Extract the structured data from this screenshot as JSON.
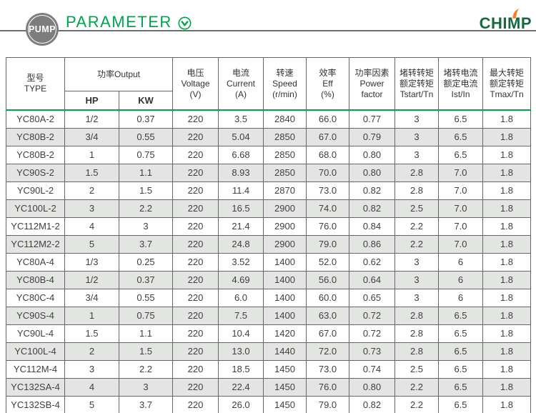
{
  "theme": {
    "accent_green": "#00a44c",
    "brand_green": "#17693d",
    "brand_orange": "#f58220",
    "badge_gray": "#7d7d7d",
    "rule_gray": "#6e6e6e",
    "row_shade": "#e3e5e2",
    "border_gray": "#666666",
    "text_dark": "#3c3c3c"
  },
  "header": {
    "badge_label": "PUMP",
    "title": "PARAMETER",
    "brand": "CHIMP"
  },
  "table": {
    "headers": {
      "type": {
        "line1": "型号",
        "line2": "TYPE"
      },
      "output": {
        "title": "功率Output",
        "sub": [
          "HP",
          "KW"
        ]
      },
      "voltage": {
        "line1": "电压",
        "line2": "Voltage",
        "line3": "(V)"
      },
      "current": {
        "line1": "电流",
        "line2": "Current",
        "line3": "(A)"
      },
      "speed": {
        "line1": "转速",
        "line2": "Speed",
        "line3": "(r/min)"
      },
      "eff": {
        "line1": "效率",
        "line2": "Eff",
        "line3": "(%)"
      },
      "power_factor": {
        "line1": "功率因素",
        "line2": "Power",
        "line3": "factor"
      },
      "tstart": {
        "line1": "堵转转矩",
        "line2": "额定转矩",
        "line3": "Tstart/Tn"
      },
      "ist": {
        "line1": "堵转电流",
        "line2": "额定电流",
        "line3": "Ist/In"
      },
      "tmax": {
        "line1": "最大转矩",
        "line2": "额定转矩",
        "line3": "Tmax/Tn"
      }
    },
    "rows": [
      [
        "YC80A-2",
        "1/2",
        "0.37",
        "220",
        "3.5",
        "2840",
        "66.0",
        "0.77",
        "3",
        "6.5",
        "1.8"
      ],
      [
        "YC80B-2",
        "3/4",
        "0.55",
        "220",
        "5.04",
        "2850",
        "67.0",
        "0.79",
        "3",
        "6.5",
        "1.8"
      ],
      [
        "YC80B-2",
        "1",
        "0.75",
        "220",
        "6.68",
        "2850",
        "68.0",
        "0.80",
        "3",
        "6.5",
        "1.8"
      ],
      [
        "YC90S-2",
        "1.5",
        "1.1",
        "220",
        "8.93",
        "2850",
        "70.0",
        "0.80",
        "2.8",
        "7.0",
        "1.8"
      ],
      [
        "YC90L-2",
        "2",
        "1.5",
        "220",
        "11.4",
        "2870",
        "73.0",
        "0.82",
        "2.8",
        "7.0",
        "1.8"
      ],
      [
        "YC100L-2",
        "3",
        "2.2",
        "220",
        "16.5",
        "2900",
        "74.0",
        "0.82",
        "2.5",
        "7.0",
        "1.8"
      ],
      [
        "YC112M1-2",
        "4",
        "3",
        "220",
        "21.4",
        "2900",
        "76.0",
        "0.84",
        "2.2",
        "7.0",
        "1.8"
      ],
      [
        "YC112M2-2",
        "5",
        "3.7",
        "220",
        "24.8",
        "2900",
        "79.0",
        "0.86",
        "2.2",
        "7.0",
        "1.8"
      ],
      [
        "YC80A-4",
        "1/3",
        "0.25",
        "220",
        "3.52",
        "1400",
        "52.0",
        "0.62",
        "3",
        "6",
        "1.8"
      ],
      [
        "YC80B-4",
        "1/2",
        "0.37",
        "220",
        "4.69",
        "1400",
        "56.0",
        "0.64",
        "3",
        "6",
        "1.8"
      ],
      [
        "YC80C-4",
        "3/4",
        "0.55",
        "220",
        "6.0",
        "1400",
        "60.0",
        "0.65",
        "3",
        "6",
        "1.8"
      ],
      [
        "YC90S-4",
        "1",
        "0.75",
        "220",
        "7.5",
        "1400",
        "63.0",
        "0.72",
        "2.8",
        "6.5",
        "1.8"
      ],
      [
        "YC90L-4",
        "1.5",
        "1.1",
        "220",
        "10.4",
        "1420",
        "67.0",
        "0.72",
        "2.8",
        "6.5",
        "1.8"
      ],
      [
        "YC100L-4",
        "2",
        "1.5",
        "220",
        "13.0",
        "1440",
        "72.0",
        "0.73",
        "2.8",
        "6.5",
        "1.8"
      ],
      [
        "YC112M-4",
        "3",
        "2.2",
        "220",
        "18.5",
        "1450",
        "73.0",
        "0.74",
        "2.5",
        "6.5",
        "1.8"
      ],
      [
        "YC132SA-4",
        "4",
        "3",
        "220",
        "22.4",
        "1450",
        "76.0",
        "0.80",
        "2.2",
        "6.5",
        "1.8"
      ],
      [
        "YC132SB-4",
        "5",
        "3.7",
        "220",
        "26.0",
        "1450",
        "79.0",
        "0.82",
        "2.2",
        "6.5",
        "1.8"
      ]
    ]
  }
}
